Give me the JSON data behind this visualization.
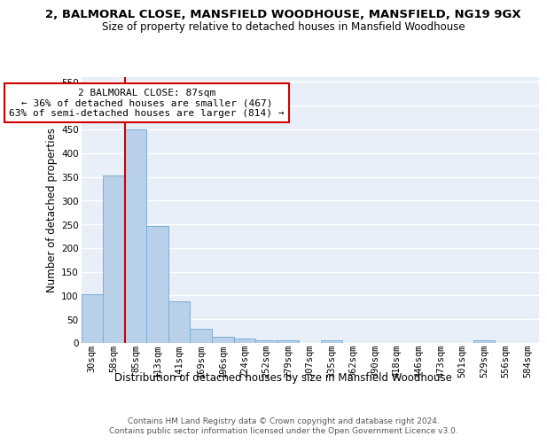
{
  "title1": "2, BALMORAL CLOSE, MANSFIELD WOODHOUSE, MANSFIELD, NG19 9GX",
  "title2": "Size of property relative to detached houses in Mansfield Woodhouse",
  "xlabel": "Distribution of detached houses by size in Mansfield Woodhouse",
  "ylabel": "Number of detached properties",
  "bin_labels": [
    "30sqm",
    "58sqm",
    "85sqm",
    "113sqm",
    "141sqm",
    "169sqm",
    "196sqm",
    "224sqm",
    "252sqm",
    "279sqm",
    "307sqm",
    "335sqm",
    "362sqm",
    "390sqm",
    "418sqm",
    "446sqm",
    "473sqm",
    "501sqm",
    "529sqm",
    "556sqm",
    "584sqm"
  ],
  "bar_heights": [
    103,
    353,
    449,
    246,
    87,
    30,
    13,
    9,
    5,
    5,
    0,
    5,
    0,
    0,
    0,
    0,
    0,
    0,
    5,
    0,
    0
  ],
  "bar_color": "#b8d0ea",
  "bar_edge_color": "#7aafd4",
  "vline_color": "#cc0000",
  "annotation_line1": "2 BALMORAL CLOSE: 87sqm",
  "annotation_line2": "← 36% of detached houses are smaller (467)",
  "annotation_line3": "63% of semi-detached houses are larger (814) →",
  "annotation_box_color": "#ffffff",
  "annotation_box_edge_color": "#cc0000",
  "ylim": [
    0,
    560
  ],
  "yticks": [
    0,
    50,
    100,
    150,
    200,
    250,
    300,
    350,
    400,
    450,
    500,
    550
  ],
  "footer1": "Contains HM Land Registry data © Crown copyright and database right 2024.",
  "footer2": "Contains public sector information licensed under the Open Government Licence v3.0.",
  "background_color": "#e8eff8",
  "grid_color": "#ffffff",
  "title1_fontsize": 9.5,
  "title2_fontsize": 8.5,
  "axis_label_fontsize": 8.5,
  "tick_fontsize": 7.5,
  "annotation_fontsize": 8.0,
  "footer_fontsize": 6.5
}
